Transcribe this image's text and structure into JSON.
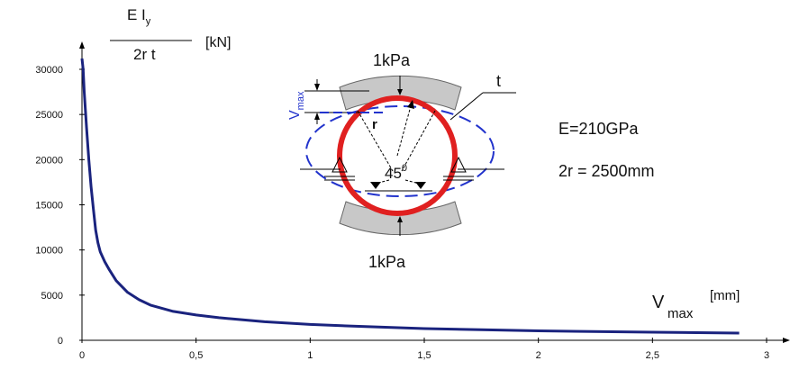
{
  "chart_data": {
    "type": "line",
    "ylabel_numerator": "E I",
    "ylabel_numerator_sub": "y",
    "ylabel_denominator": "2r t",
    "ylabel_unit": "[kN]",
    "xlabel": "V",
    "xlabel_sub": "max",
    "xlabel_unit": "[mm]",
    "xlim": [
      0,
      3
    ],
    "ylim": [
      0,
      32000
    ],
    "x_ticks": [
      0,
      0.5,
      1,
      1.5,
      2,
      2.5,
      3
    ],
    "x_tick_labels": [
      "0",
      "0,5",
      "1",
      "1,5",
      "2",
      "2,5",
      "3"
    ],
    "y_ticks": [
      0,
      5000,
      10000,
      15000,
      20000,
      25000,
      30000
    ],
    "y_tick_labels": [
      "0",
      "5000",
      "10000",
      "15000",
      "20000",
      "25000",
      "30000"
    ],
    "series": [
      {
        "color": "#1a237e",
        "x": [
          0.0,
          0.005,
          0.01,
          0.015,
          0.02,
          0.03,
          0.04,
          0.05,
          0.06,
          0.07,
          0.08,
          0.1,
          0.12,
          0.15,
          0.2,
          0.25,
          0.3,
          0.4,
          0.5,
          0.6,
          0.8,
          1.0,
          1.2,
          1.5,
          1.8,
          2.0,
          2.5,
          2.88
        ],
        "y": [
          31200,
          30000,
          27500,
          25500,
          23500,
          20000,
          17000,
          14500,
          12200,
          10800,
          9800,
          8700,
          7800,
          6600,
          5300,
          4500,
          3900,
          3200,
          2800,
          2500,
          2050,
          1750,
          1550,
          1300,
          1150,
          1050,
          900,
          800
        ]
      }
    ],
    "legend": "none",
    "grid": false
  },
  "inset": {
    "load_top": "1kPa",
    "load_bottom": "1kPa",
    "label_t": "t",
    "label_r": "r",
    "label_v": "V",
    "label_v_sub": "max",
    "angle": "45",
    "angle_sup": "0",
    "colors": {
      "ring": "#e02020",
      "deflection": "#2233cc",
      "load": "#c8c8c8"
    }
  },
  "params": {
    "modulus": "E=210GPa",
    "diameter": "2r = 2500mm"
  }
}
